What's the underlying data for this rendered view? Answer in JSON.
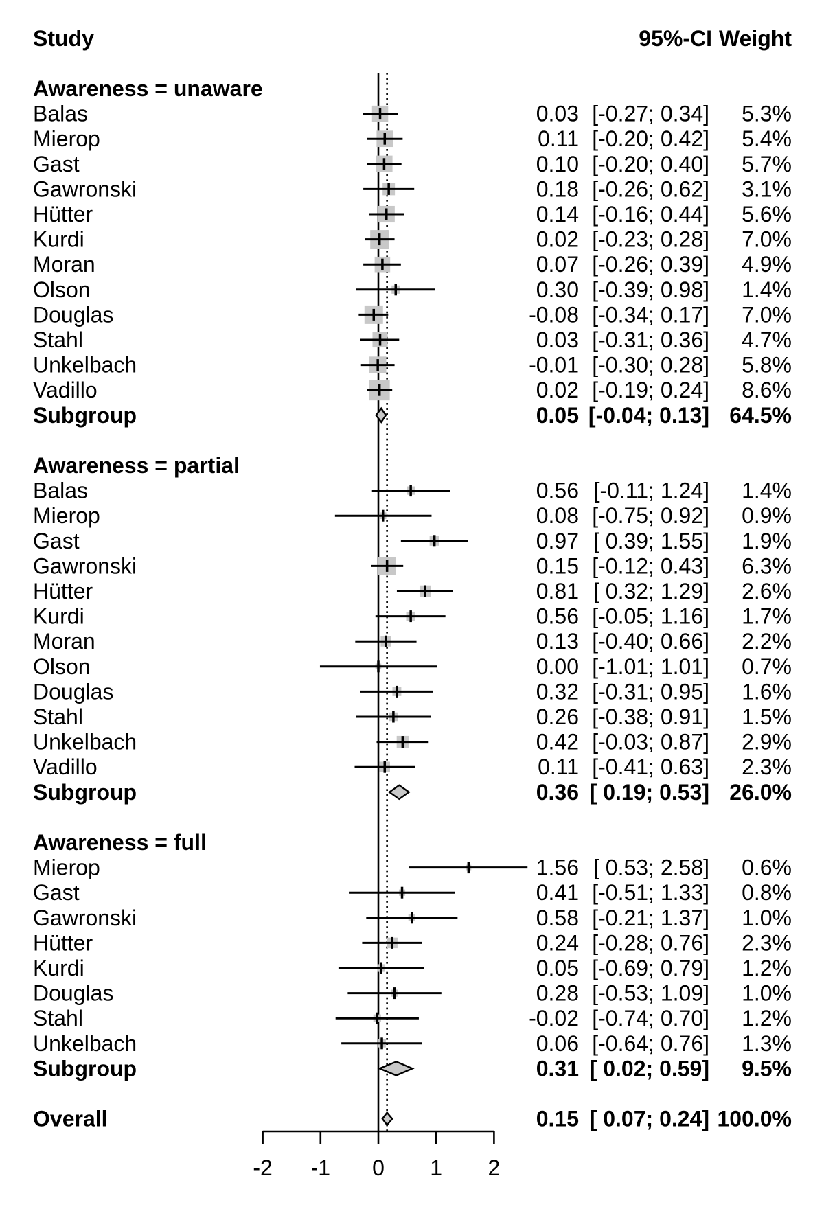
{
  "header": {
    "study": "Study",
    "ci": "95%-CI",
    "weight": "Weight"
  },
  "chart_data": {
    "type": "forest",
    "title": "",
    "xlabel": "",
    "xlim": [
      -2.5,
      2.5
    ],
    "x_ticks": [
      -2,
      -1,
      0,
      1,
      2
    ],
    "x_tick_labels": [
      "-2",
      "-1",
      "0",
      "1",
      "2"
    ],
    "reference_line": 0,
    "overall_dotted_line": 0.15,
    "grid": false,
    "marker_color": "#c8c8c8",
    "diamond_fill": "#c8c8c8",
    "line_color": "#000000",
    "groups": [
      {
        "label": "Awareness = unaware",
        "studies": [
          {
            "name": "Balas",
            "est": 0.03,
            "lo": -0.27,
            "hi": 0.34,
            "est_text": "0.03",
            "ci_text": "[-0.27; 0.34]",
            "weight": 5.3,
            "weight_text": "5.3%"
          },
          {
            "name": "Mierop",
            "est": 0.11,
            "lo": -0.2,
            "hi": 0.42,
            "est_text": "0.11",
            "ci_text": "[-0.20; 0.42]",
            "weight": 5.4,
            "weight_text": "5.4%"
          },
          {
            "name": "Gast",
            "est": 0.1,
            "lo": -0.2,
            "hi": 0.4,
            "est_text": "0.10",
            "ci_text": "[-0.20; 0.40]",
            "weight": 5.7,
            "weight_text": "5.7%"
          },
          {
            "name": "Gawronski",
            "est": 0.18,
            "lo": -0.26,
            "hi": 0.62,
            "est_text": "0.18",
            "ci_text": "[-0.26; 0.62]",
            "weight": 3.1,
            "weight_text": "3.1%"
          },
          {
            "name": "Hütter",
            "est": 0.14,
            "lo": -0.16,
            "hi": 0.44,
            "est_text": "0.14",
            "ci_text": "[-0.16; 0.44]",
            "weight": 5.6,
            "weight_text": "5.6%"
          },
          {
            "name": "Kurdi",
            "est": 0.02,
            "lo": -0.23,
            "hi": 0.28,
            "est_text": "0.02",
            "ci_text": "[-0.23; 0.28]",
            "weight": 7.0,
            "weight_text": "7.0%"
          },
          {
            "name": "Moran",
            "est": 0.07,
            "lo": -0.26,
            "hi": 0.39,
            "est_text": "0.07",
            "ci_text": "[-0.26; 0.39]",
            "weight": 4.9,
            "weight_text": "4.9%"
          },
          {
            "name": "Olson",
            "est": 0.3,
            "lo": -0.39,
            "hi": 0.98,
            "est_text": "0.30",
            "ci_text": "[-0.39; 0.98]",
            "weight": 1.4,
            "weight_text": "1.4%"
          },
          {
            "name": "Douglas",
            "est": -0.08,
            "lo": -0.34,
            "hi": 0.17,
            "est_text": "-0.08",
            "ci_text": "[-0.34; 0.17]",
            "weight": 7.0,
            "weight_text": "7.0%"
          },
          {
            "name": "Stahl",
            "est": 0.03,
            "lo": -0.31,
            "hi": 0.36,
            "est_text": "0.03",
            "ci_text": "[-0.31; 0.36]",
            "weight": 4.7,
            "weight_text": "4.7%"
          },
          {
            "name": "Unkelbach",
            "est": -0.01,
            "lo": -0.3,
            "hi": 0.28,
            "est_text": "-0.01",
            "ci_text": "[-0.30; 0.28]",
            "weight": 5.8,
            "weight_text": "5.8%"
          },
          {
            "name": "Vadillo",
            "est": 0.02,
            "lo": -0.19,
            "hi": 0.24,
            "est_text": "0.02",
            "ci_text": "[-0.19; 0.24]",
            "weight": 8.6,
            "weight_text": "8.6%"
          }
        ],
        "subgroup": {
          "name": "Subgroup",
          "est": 0.05,
          "lo": -0.04,
          "hi": 0.13,
          "est_text": "0.05",
          "ci_text": "[-0.04; 0.13]",
          "weight_text": "64.5%"
        }
      },
      {
        "label": "Awareness = partial",
        "studies": [
          {
            "name": "Balas",
            "est": 0.56,
            "lo": -0.11,
            "hi": 1.24,
            "est_text": "0.56",
            "ci_text": "[-0.11; 1.24]",
            "weight": 1.4,
            "weight_text": "1.4%"
          },
          {
            "name": "Mierop",
            "est": 0.08,
            "lo": -0.75,
            "hi": 0.92,
            "est_text": "0.08",
            "ci_text": "[-0.75; 0.92]",
            "weight": 0.9,
            "weight_text": "0.9%"
          },
          {
            "name": "Gast",
            "est": 0.97,
            "lo": 0.39,
            "hi": 1.55,
            "est_text": "0.97",
            "ci_text": "[ 0.39; 1.55]",
            "weight": 1.9,
            "weight_text": "1.9%"
          },
          {
            "name": "Gawronski",
            "est": 0.15,
            "lo": -0.12,
            "hi": 0.43,
            "est_text": "0.15",
            "ci_text": "[-0.12; 0.43]",
            "weight": 6.3,
            "weight_text": "6.3%"
          },
          {
            "name": "Hütter",
            "est": 0.81,
            "lo": 0.32,
            "hi": 1.29,
            "est_text": "0.81",
            "ci_text": "[ 0.32; 1.29]",
            "weight": 2.6,
            "weight_text": "2.6%"
          },
          {
            "name": "Kurdi",
            "est": 0.56,
            "lo": -0.05,
            "hi": 1.16,
            "est_text": "0.56",
            "ci_text": "[-0.05; 1.16]",
            "weight": 1.7,
            "weight_text": "1.7%"
          },
          {
            "name": "Moran",
            "est": 0.13,
            "lo": -0.4,
            "hi": 0.66,
            "est_text": "0.13",
            "ci_text": "[-0.40; 0.66]",
            "weight": 2.2,
            "weight_text": "2.2%"
          },
          {
            "name": "Olson",
            "est": 0.0,
            "lo": -1.01,
            "hi": 1.01,
            "est_text": "0.00",
            "ci_text": "[-1.01; 1.01]",
            "weight": 0.7,
            "weight_text": "0.7%"
          },
          {
            "name": "Douglas",
            "est": 0.32,
            "lo": -0.31,
            "hi": 0.95,
            "est_text": "0.32",
            "ci_text": "[-0.31; 0.95]",
            "weight": 1.6,
            "weight_text": "1.6%"
          },
          {
            "name": "Stahl",
            "est": 0.26,
            "lo": -0.38,
            "hi": 0.91,
            "est_text": "0.26",
            "ci_text": "[-0.38; 0.91]",
            "weight": 1.5,
            "weight_text": "1.5%"
          },
          {
            "name": "Unkelbach",
            "est": 0.42,
            "lo": -0.03,
            "hi": 0.87,
            "est_text": "0.42",
            "ci_text": "[-0.03; 0.87]",
            "weight": 2.9,
            "weight_text": "2.9%"
          },
          {
            "name": "Vadillo",
            "est": 0.11,
            "lo": -0.41,
            "hi": 0.63,
            "est_text": "0.11",
            "ci_text": "[-0.41; 0.63]",
            "weight": 2.3,
            "weight_text": "2.3%"
          }
        ],
        "subgroup": {
          "name": "Subgroup",
          "est": 0.36,
          "lo": 0.19,
          "hi": 0.53,
          "est_text": "0.36",
          "ci_text": "[ 0.19; 0.53]",
          "weight_text": "26.0%"
        }
      },
      {
        "label": "Awareness = full",
        "studies": [
          {
            "name": "Mierop",
            "est": 1.56,
            "lo": 0.53,
            "hi": 2.58,
            "est_text": "1.56",
            "ci_text": "[ 0.53; 2.58]",
            "weight": 0.6,
            "weight_text": "0.6%"
          },
          {
            "name": "Gast",
            "est": 0.41,
            "lo": -0.51,
            "hi": 1.33,
            "est_text": "0.41",
            "ci_text": "[-0.51; 1.33]",
            "weight": 0.8,
            "weight_text": "0.8%"
          },
          {
            "name": "Gawronski",
            "est": 0.58,
            "lo": -0.21,
            "hi": 1.37,
            "est_text": "0.58",
            "ci_text": "[-0.21; 1.37]",
            "weight": 1.0,
            "weight_text": "1.0%"
          },
          {
            "name": "Hütter",
            "est": 0.24,
            "lo": -0.28,
            "hi": 0.76,
            "est_text": "0.24",
            "ci_text": "[-0.28; 0.76]",
            "weight": 2.3,
            "weight_text": "2.3%"
          },
          {
            "name": "Kurdi",
            "est": 0.05,
            "lo": -0.69,
            "hi": 0.79,
            "est_text": "0.05",
            "ci_text": "[-0.69; 0.79]",
            "weight": 1.2,
            "weight_text": "1.2%"
          },
          {
            "name": "Douglas",
            "est": 0.28,
            "lo": -0.53,
            "hi": 1.09,
            "est_text": "0.28",
            "ci_text": "[-0.53; 1.09]",
            "weight": 1.0,
            "weight_text": "1.0%"
          },
          {
            "name": "Stahl",
            "est": -0.02,
            "lo": -0.74,
            "hi": 0.7,
            "est_text": "-0.02",
            "ci_text": "[-0.74; 0.70]",
            "weight": 1.2,
            "weight_text": "1.2%"
          },
          {
            "name": "Unkelbach",
            "est": 0.06,
            "lo": -0.64,
            "hi": 0.76,
            "est_text": "0.06",
            "ci_text": "[-0.64; 0.76]",
            "weight": 1.3,
            "weight_text": "1.3%"
          }
        ],
        "subgroup": {
          "name": "Subgroup",
          "est": 0.31,
          "lo": 0.02,
          "hi": 0.59,
          "est_text": "0.31",
          "ci_text": "[ 0.02; 0.59]",
          "weight_text": "9.5%"
        }
      }
    ],
    "overall": {
      "name": "Overall",
      "est": 0.15,
      "lo": 0.07,
      "hi": 0.24,
      "est_text": "0.15",
      "ci_text": "[ 0.07; 0.24]",
      "weight_text": "100.0%"
    }
  }
}
